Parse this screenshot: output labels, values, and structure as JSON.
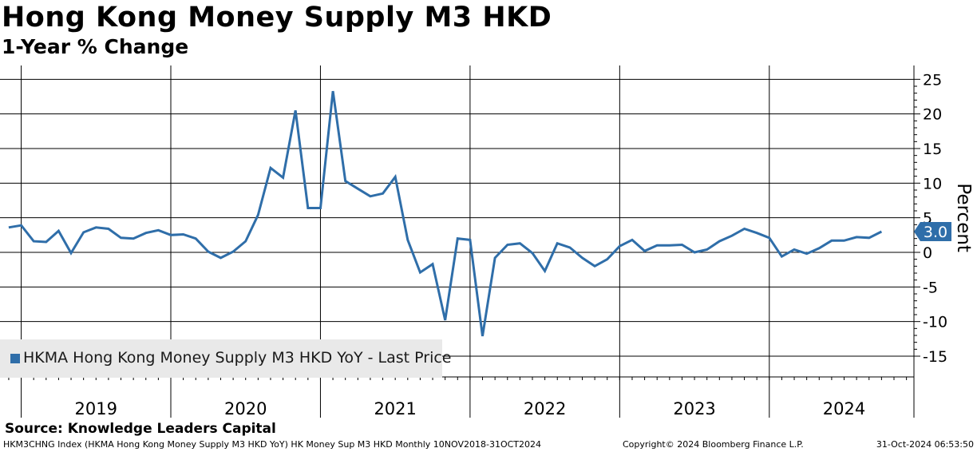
{
  "header": {
    "title": "Hong Kong Money Supply M3 HKD",
    "subtitle": "1-Year % Change"
  },
  "legend": {
    "label": "HKMA Hong Kong Money Supply M3 HKD YoY - Last Price"
  },
  "footer": {
    "source": "Source: Knowledge Leaders Capital",
    "ticker": "HKM3CHNG Index (HKMA Hong Kong Money Supply M3 HKD YoY) HK Money Sup M3 HKD  Monthly 10NOV2018-31OCT2024",
    "copyright": "Copyright© 2024 Bloomberg Finance L.P.",
    "timestamp": "31-Oct-2024 06:53:50"
  },
  "colors": {
    "line": "#2f6ea9",
    "last_price_badge": "#2f6ea9"
  },
  "chart_data": {
    "type": "line",
    "title": "Hong Kong Money Supply M3 HKD",
    "subtitle": "1-Year % Change",
    "ylabel": "Percent",
    "xlabel": "",
    "ylim": [
      -18,
      27
    ],
    "yticks": [
      25,
      20,
      15,
      10,
      5,
      0,
      -5,
      -10,
      -15
    ],
    "y_tick_labels": [
      "25",
      "20",
      "15",
      "10",
      "5",
      "0",
      "-5",
      "-10",
      "-15"
    ],
    "year_labels": [
      "2019",
      "2020",
      "2021",
      "2022",
      "2023",
      "2024"
    ],
    "x_range_months": [
      -1.7,
      71.6
    ],
    "grid": true,
    "last_price_label": "3.0",
    "series": [
      {
        "name": "HKMA Hong Kong Money Supply M3 HKD YoY - Last Price",
        "months_from_jan_2019": [
          -1,
          0,
          1,
          2,
          3,
          4,
          5,
          6,
          7,
          8,
          9,
          10,
          11,
          12,
          13,
          14,
          15,
          16,
          17,
          18,
          19,
          20,
          21,
          22,
          23,
          24,
          25,
          26,
          27,
          28,
          29,
          30,
          31,
          32,
          33,
          34,
          35,
          36,
          37,
          38,
          39,
          40,
          41,
          42,
          43,
          44,
          45,
          46,
          47,
          48,
          49,
          50,
          51,
          52,
          53,
          54,
          55,
          56,
          57,
          58,
          59,
          60,
          61,
          62,
          63,
          64,
          65,
          66,
          67,
          68,
          69
        ],
        "values": [
          3.6,
          3.9,
          1.6,
          1.5,
          3.1,
          -0.1,
          2.9,
          3.6,
          3.4,
          2.1,
          2.0,
          2.8,
          3.2,
          2.5,
          2.6,
          2.0,
          0.1,
          -0.8,
          0.1,
          1.6,
          5.4,
          12.2,
          10.8,
          20.5,
          6.4,
          6.4,
          23.3,
          10.3,
          9.2,
          8.1,
          8.5,
          10.9,
          1.8,
          -2.9,
          -1.7,
          -9.8,
          2.0,
          1.8,
          -12.1,
          -0.8,
          1.1,
          1.3,
          -0.1,
          -2.7,
          1.3,
          0.7,
          -0.8,
          -2.0,
          -1.0,
          0.9,
          1.8,
          0.2,
          1.0,
          1.0,
          1.1,
          0.0,
          0.4,
          1.6,
          2.4,
          3.4,
          2.8,
          2.1,
          -0.6,
          0.4,
          -0.2,
          0.6,
          1.7,
          1.7,
          2.2,
          2.1,
          3.0
        ]
      }
    ]
  }
}
